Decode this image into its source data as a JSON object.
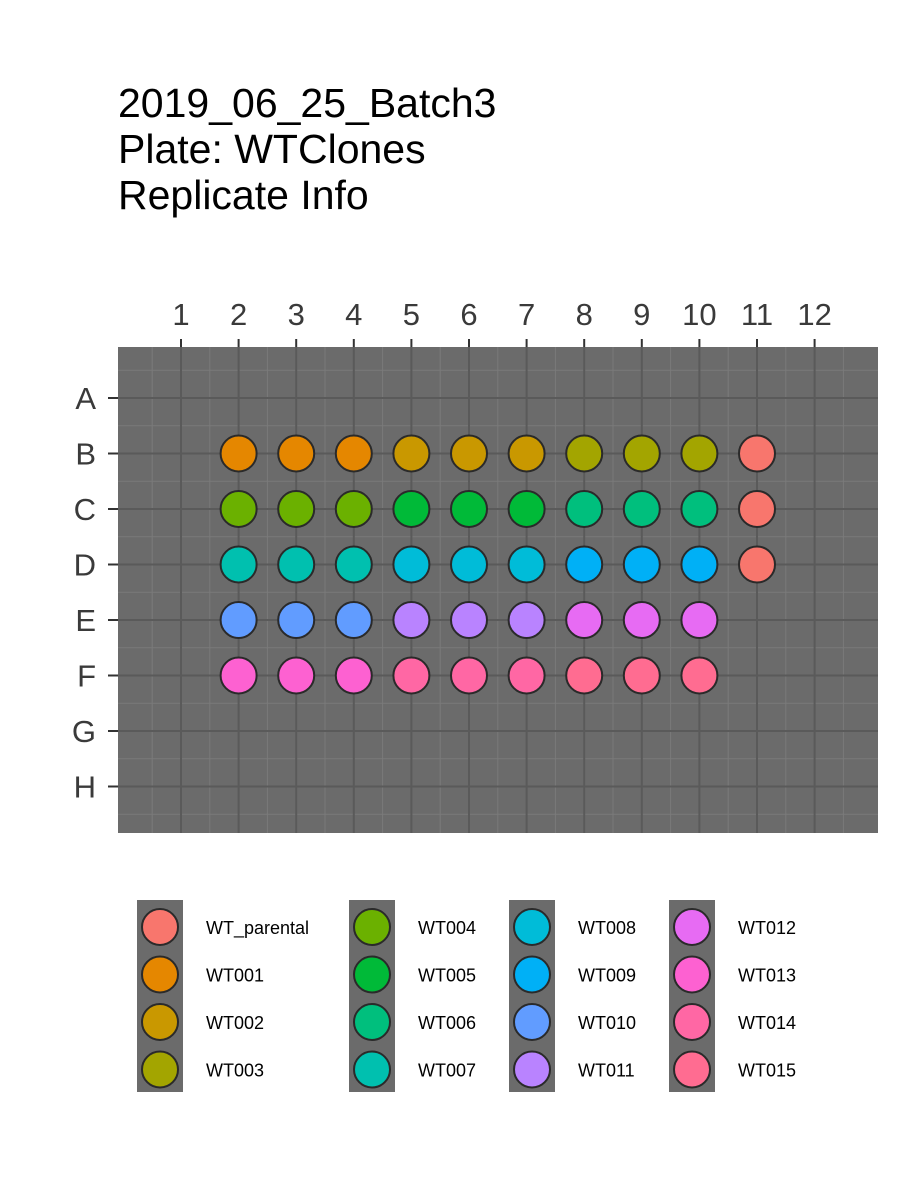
{
  "titles": [
    "2019_06_25_Batch3",
    "Plate: WTClones",
    "Replicate Info"
  ],
  "colors": {
    "panel": "#6b6b6b",
    "grid_major": "#5a5a5a",
    "grid_minor": "#7a7a7a",
    "point_stroke": "#2a2a2a"
  },
  "chart_data": {
    "type": "scatter",
    "plot_kind": "plate-layout",
    "x_ticks": [
      "1",
      "2",
      "3",
      "4",
      "5",
      "6",
      "7",
      "8",
      "9",
      "10",
      "11",
      "12"
    ],
    "y_ticks": [
      "A",
      "B",
      "C",
      "D",
      "E",
      "F",
      "G",
      "H"
    ],
    "x_axis_position": "top",
    "grid": true,
    "legend_position": "bottom",
    "legend": [
      {
        "label": "WT_parental",
        "color": "#F8766D"
      },
      {
        "label": "WT001",
        "color": "#E58700"
      },
      {
        "label": "WT002",
        "color": "#C99800"
      },
      {
        "label": "WT003",
        "color": "#A3A500"
      },
      {
        "label": "WT004",
        "color": "#6BB100"
      },
      {
        "label": "WT005",
        "color": "#00BA38"
      },
      {
        "label": "WT006",
        "color": "#00BF7D"
      },
      {
        "label": "WT007",
        "color": "#00C0AF"
      },
      {
        "label": "WT008",
        "color": "#00BCD8"
      },
      {
        "label": "WT009",
        "color": "#00B0F6"
      },
      {
        "label": "WT010",
        "color": "#619CFF"
      },
      {
        "label": "WT011",
        "color": "#B983FF"
      },
      {
        "label": "WT012",
        "color": "#E76BF3"
      },
      {
        "label": "WT013",
        "color": "#FD61D1"
      },
      {
        "label": "WT014",
        "color": "#FF67A4"
      },
      {
        "label": "WT015",
        "color": "#FF6C91"
      }
    ],
    "wells": [
      {
        "row": "B",
        "col": 2,
        "group": "WT001"
      },
      {
        "row": "B",
        "col": 3,
        "group": "WT001"
      },
      {
        "row": "B",
        "col": 4,
        "group": "WT001"
      },
      {
        "row": "B",
        "col": 5,
        "group": "WT002"
      },
      {
        "row": "B",
        "col": 6,
        "group": "WT002"
      },
      {
        "row": "B",
        "col": 7,
        "group": "WT002"
      },
      {
        "row": "B",
        "col": 8,
        "group": "WT003"
      },
      {
        "row": "B",
        "col": 9,
        "group": "WT003"
      },
      {
        "row": "B",
        "col": 10,
        "group": "WT003"
      },
      {
        "row": "B",
        "col": 11,
        "group": "WT_parental"
      },
      {
        "row": "C",
        "col": 2,
        "group": "WT004"
      },
      {
        "row": "C",
        "col": 3,
        "group": "WT004"
      },
      {
        "row": "C",
        "col": 4,
        "group": "WT004"
      },
      {
        "row": "C",
        "col": 5,
        "group": "WT005"
      },
      {
        "row": "C",
        "col": 6,
        "group": "WT005"
      },
      {
        "row": "C",
        "col": 7,
        "group": "WT005"
      },
      {
        "row": "C",
        "col": 8,
        "group": "WT006"
      },
      {
        "row": "C",
        "col": 9,
        "group": "WT006"
      },
      {
        "row": "C",
        "col": 10,
        "group": "WT006"
      },
      {
        "row": "C",
        "col": 11,
        "group": "WT_parental"
      },
      {
        "row": "D",
        "col": 2,
        "group": "WT007"
      },
      {
        "row": "D",
        "col": 3,
        "group": "WT007"
      },
      {
        "row": "D",
        "col": 4,
        "group": "WT007"
      },
      {
        "row": "D",
        "col": 5,
        "group": "WT008"
      },
      {
        "row": "D",
        "col": 6,
        "group": "WT008"
      },
      {
        "row": "D",
        "col": 7,
        "group": "WT008"
      },
      {
        "row": "D",
        "col": 8,
        "group": "WT009"
      },
      {
        "row": "D",
        "col": 9,
        "group": "WT009"
      },
      {
        "row": "D",
        "col": 10,
        "group": "WT009"
      },
      {
        "row": "D",
        "col": 11,
        "group": "WT_parental"
      },
      {
        "row": "E",
        "col": 2,
        "group": "WT010"
      },
      {
        "row": "E",
        "col": 3,
        "group": "WT010"
      },
      {
        "row": "E",
        "col": 4,
        "group": "WT010"
      },
      {
        "row": "E",
        "col": 5,
        "group": "WT011"
      },
      {
        "row": "E",
        "col": 6,
        "group": "WT011"
      },
      {
        "row": "E",
        "col": 7,
        "group": "WT011"
      },
      {
        "row": "E",
        "col": 8,
        "group": "WT012"
      },
      {
        "row": "E",
        "col": 9,
        "group": "WT012"
      },
      {
        "row": "E",
        "col": 10,
        "group": "WT012"
      },
      {
        "row": "F",
        "col": 2,
        "group": "WT013"
      },
      {
        "row": "F",
        "col": 3,
        "group": "WT013"
      },
      {
        "row": "F",
        "col": 4,
        "group": "WT013"
      },
      {
        "row": "F",
        "col": 5,
        "group": "WT014"
      },
      {
        "row": "F",
        "col": 6,
        "group": "WT014"
      },
      {
        "row": "F",
        "col": 7,
        "group": "WT014"
      },
      {
        "row": "F",
        "col": 8,
        "group": "WT015"
      },
      {
        "row": "F",
        "col": 9,
        "group": "WT015"
      },
      {
        "row": "F",
        "col": 10,
        "group": "WT015"
      }
    ]
  }
}
